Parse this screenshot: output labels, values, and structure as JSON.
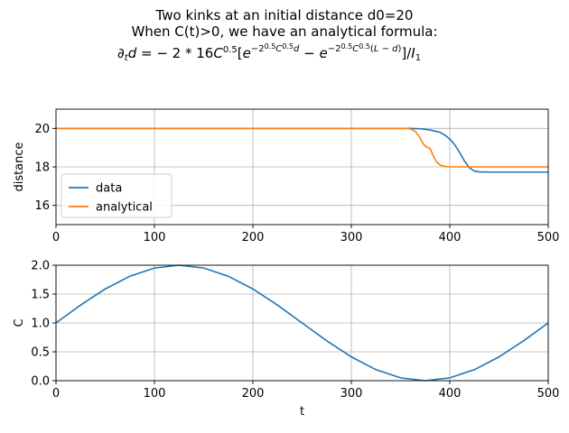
{
  "figure": {
    "title_line1": "Two kinks at an initial distance d0=20",
    "title_line2": "When C(t)>0, we have an analytical formula:"
  },
  "chart_data": [
    {
      "type": "line",
      "ylabel": "distance",
      "xlim": [
        0,
        500
      ],
      "ylim": [
        15,
        21
      ],
      "xticks": [
        0,
        100,
        200,
        300,
        400,
        500
      ],
      "yticks": [
        16,
        18,
        20
      ],
      "grid": true,
      "legend": "lower-left",
      "series": [
        {
          "name": "data",
          "color": "#1f77b4",
          "x": [
            0,
            350,
            360,
            370,
            380,
            390,
            395,
            400,
            405,
            410,
            415,
            420,
            425,
            430,
            440,
            460,
            500
          ],
          "y": [
            20,
            20,
            20,
            19.98,
            19.92,
            19.8,
            19.65,
            19.45,
            19.15,
            18.75,
            18.3,
            17.95,
            17.78,
            17.74,
            17.73,
            17.73,
            17.73
          ]
        },
        {
          "name": "analytical",
          "color": "#ff7f0e",
          "x": [
            0,
            355,
            360,
            365,
            370,
            373,
            376,
            380,
            383,
            386,
            390,
            395,
            400,
            410,
            430,
            500
          ],
          "y": [
            20,
            20,
            19.97,
            19.85,
            19.5,
            19.2,
            19.05,
            18.95,
            18.6,
            18.3,
            18.1,
            18.02,
            18.0,
            18.0,
            18.0,
            18.0
          ]
        }
      ]
    },
    {
      "type": "line",
      "xlabel": "t",
      "ylabel": "C",
      "xlim": [
        0,
        500
      ],
      "ylim": [
        0,
        2
      ],
      "xticks": [
        0,
        100,
        200,
        300,
        400,
        500
      ],
      "yticks": [
        0.0,
        0.5,
        1.0,
        1.5,
        2.0
      ],
      "grid": true,
      "series": [
        {
          "color": "#1f77b4",
          "x": [
            0,
            25,
            50,
            75,
            100,
            125,
            150,
            175,
            200,
            225,
            250,
            275,
            300,
            325,
            350,
            375,
            400,
            425,
            450,
            475,
            500
          ],
          "y": [
            1.0,
            1.309,
            1.588,
            1.809,
            1.951,
            2.0,
            1.951,
            1.809,
            1.588,
            1.309,
            1.0,
            0.691,
            0.412,
            0.191,
            0.049,
            0.0,
            0.049,
            0.191,
            0.412,
            0.691,
            1.0
          ]
        }
      ]
    }
  ]
}
